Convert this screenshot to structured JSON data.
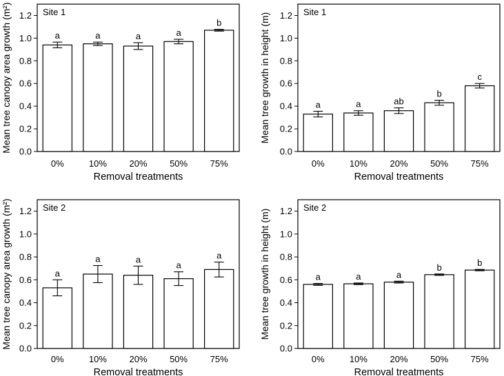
{
  "chart_data": [
    {
      "type": "bar",
      "panel_label": "Site 1",
      "categories": [
        "0%",
        "10%",
        "20%",
        "50%",
        "75%"
      ],
      "values": [
        0.94,
        0.95,
        0.93,
        0.97,
        1.07
      ],
      "errors": [
        0.025,
        0.015,
        0.03,
        0.02,
        0.008
      ],
      "letters": [
        "a",
        "a",
        "a",
        "a",
        "b"
      ],
      "xlabel": "Removal treatments",
      "ylabel": "Mean tree canopy area growth (m²)",
      "ylim": [
        0,
        1.3
      ],
      "yticks": [
        "0.0",
        "0.2",
        "0.4",
        "0.6",
        "0.8",
        "1.0",
        "1.2"
      ],
      "grid": false
    },
    {
      "type": "bar",
      "panel_label": "Site 1",
      "categories": [
        "0%",
        "10%",
        "20%",
        "50%",
        "75%"
      ],
      "values": [
        0.33,
        0.34,
        0.36,
        0.43,
        0.58
      ],
      "errors": [
        0.025,
        0.02,
        0.025,
        0.022,
        0.02
      ],
      "letters": [
        "a",
        "a",
        "ab",
        "b",
        "c"
      ],
      "xlabel": "Removal treatments",
      "ylabel": "Mean tree growth in height (m)",
      "ylim": [
        0,
        1.3
      ],
      "yticks": [
        "0.0",
        "0.2",
        "0.4",
        "0.6",
        "0.8",
        "1.0",
        "1.2"
      ],
      "grid": false
    },
    {
      "type": "bar",
      "panel_label": "Site 2",
      "categories": [
        "0%",
        "10%",
        "20%",
        "50%",
        "75%"
      ],
      "values": [
        0.53,
        0.65,
        0.64,
        0.61,
        0.69
      ],
      "errors": [
        0.07,
        0.075,
        0.08,
        0.06,
        0.065
      ],
      "letters": [
        "a",
        "a",
        "a",
        "a",
        "a"
      ],
      "xlabel": "Removal treatments",
      "ylabel": "Mean tree canopy area growth (m²)",
      "ylim": [
        0,
        1.3
      ],
      "yticks": [
        "0.0",
        "0.2",
        "0.4",
        "0.6",
        "0.8",
        "1.0",
        "1.2"
      ],
      "grid": false
    },
    {
      "type": "bar",
      "panel_label": "Site 2",
      "categories": [
        "0%",
        "10%",
        "20%",
        "50%",
        "75%"
      ],
      "values": [
        0.56,
        0.565,
        0.58,
        0.645,
        0.685
      ],
      "errors": [
        0.008,
        0.007,
        0.008,
        0.006,
        0.006
      ],
      "letters": [
        "a",
        "a",
        "a",
        "b",
        "b"
      ],
      "xlabel": "Removal treatments",
      "ylabel": "Mean tree growth in height (m)",
      "ylim": [
        0,
        1.3
      ],
      "yticks": [
        "0.0",
        "0.2",
        "0.4",
        "0.6",
        "0.8",
        "1.0",
        "1.2"
      ],
      "grid": false
    }
  ]
}
